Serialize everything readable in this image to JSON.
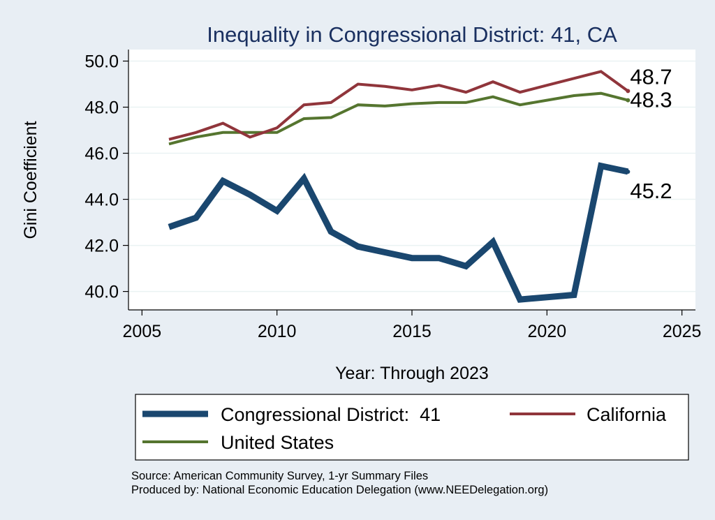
{
  "chart_data": {
    "type": "line",
    "title": "Inequality in Congressional District:  41, CA",
    "xlabel": "Year: Through 2023",
    "ylabel": "Gini Coefficient",
    "xlim": [
      2004.5,
      2025.5
    ],
    "ylim": [
      39.2,
      50.5
    ],
    "x_ticks": [
      "2005",
      "2010",
      "2015",
      "2020",
      "2025"
    ],
    "y_ticks": [
      "40.0",
      "42.0",
      "44.0",
      "46.0",
      "48.0",
      "50.0"
    ],
    "grid": true,
    "x": [
      2006,
      2007,
      2008,
      2009,
      2010,
      2011,
      2012,
      2013,
      2014,
      2015,
      2016,
      2017,
      2018,
      2019,
      2020,
      2021,
      2022,
      2023
    ],
    "series": [
      {
        "name": "Congressional District:  41",
        "color": "#1a476f",
        "values": [
          42.8,
          43.2,
          44.8,
          44.2,
          43.5,
          44.9,
          42.6,
          41.95,
          41.7,
          41.45,
          41.45,
          41.1,
          42.15,
          39.65,
          39.75,
          39.85,
          45.45,
          45.2
        ]
      },
      {
        "name": "California",
        "color": "#90353b",
        "values": [
          46.6,
          46.9,
          47.3,
          46.7,
          47.1,
          48.1,
          48.2,
          49.0,
          48.9,
          48.75,
          48.95,
          48.65,
          49.1,
          48.65,
          48.95,
          49.25,
          49.55,
          48.7
        ]
      },
      {
        "name": "United States",
        "color": "#55752f",
        "values": [
          46.4,
          46.7,
          46.9,
          46.9,
          46.9,
          47.5,
          47.55,
          48.1,
          48.05,
          48.15,
          48.2,
          48.2,
          48.45,
          48.1,
          48.3,
          48.5,
          48.6,
          48.3
        ]
      }
    ],
    "end_labels": [
      "45.2",
      "48.7",
      "48.3"
    ],
    "legend_position": "bottom",
    "notes": [
      "Source: American Community Survey, 1-yr Summary Files",
      "Produced by: National Economic Education Delegation (www.NEEDelegation.org)"
    ]
  }
}
